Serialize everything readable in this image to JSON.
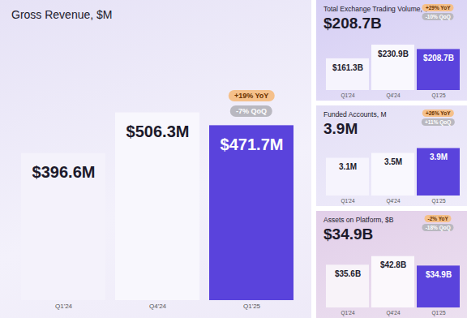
{
  "chart_data": [
    {
      "type": "bar",
      "title": "Gross Revenue, $M",
      "categories": [
        "Q1'24",
        "Q4'24",
        "Q1'25"
      ],
      "values": [
        396.6,
        506.3,
        471.7
      ],
      "value_labels": [
        "$396.6M",
        "$506.3M",
        "$471.7M"
      ],
      "colors": [
        "#f4f2fb",
        "#f8f7fd",
        "#5a43dc"
      ],
      "annotations": [
        "+19% YoY",
        "-7% QoQ"
      ],
      "ylim": [
        0,
        700
      ],
      "data_labels": true,
      "tick_labels": "x"
    },
    {
      "type": "bar",
      "title": "Total Exchange Trading Volume, $B",
      "subtitle": "$208.7B",
      "categories": [
        "Q1'24",
        "Q4'24",
        "Q1'25"
      ],
      "values": [
        161.3,
        230.9,
        208.7
      ],
      "value_labels": [
        "$161.3B",
        "$230.9B",
        "$208.7B"
      ],
      "colors": [
        "#f6f4fd",
        "#f9f8fe",
        "#5a43dc"
      ],
      "annotations": [
        "+29% YoY",
        "-10% QoQ"
      ],
      "ylim": [
        0,
        260
      ],
      "data_labels": true,
      "tick_labels": "x"
    },
    {
      "type": "bar",
      "title": "Funded Accounts, M",
      "subtitle": "3.9M",
      "categories": [
        "Q1'24",
        "Q4'24",
        "Q1'25"
      ],
      "values": [
        3.1,
        3.5,
        3.9
      ],
      "value_labels": [
        "3.1M",
        "3.5M",
        "3.9M"
      ],
      "colors": [
        "#f6f4fd",
        "#f9f8fe",
        "#5a43dc"
      ],
      "annotations": [
        "+26% YoY",
        "+11% QoQ"
      ],
      "ylim": [
        0,
        4.2
      ],
      "data_labels": true,
      "tick_labels": "x"
    },
    {
      "type": "bar",
      "title": "Assets on Platform, $B",
      "subtitle": "$34.9B",
      "categories": [
        "Q1'24",
        "Q4'24",
        "Q1'25"
      ],
      "values": [
        35.6,
        42.8,
        34.9
      ],
      "value_labels": [
        "$35.6B",
        "$42.8B",
        "$34.9B"
      ],
      "colors": [
        "#f8f3f9",
        "#fbf8fc",
        "#5a43dc"
      ],
      "annotations": [
        "-2% YoY",
        "-18% QoQ"
      ],
      "ylim": [
        0,
        48
      ],
      "data_labels": true,
      "tick_labels": "x"
    }
  ]
}
